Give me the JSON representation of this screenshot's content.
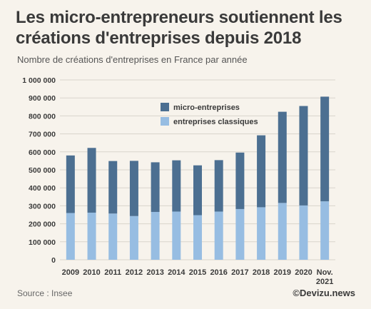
{
  "title": "Les micro-entrepreneurs soutiennent les créations d'entreprises depuis 2018",
  "subtitle": "Nombre de créations d'entreprises en France par année",
  "source": "Source : Insee",
  "brand": "©Devizu.news",
  "colors": {
    "micro": "#4c6f91",
    "classic": "#97bde2",
    "grid": "#d9d4cb",
    "text": "#3a3a3a"
  },
  "chart_data": {
    "type": "bar",
    "stacked": true,
    "categories": [
      "2009",
      "2010",
      "2011",
      "2012",
      "2013",
      "2014",
      "2015",
      "2016",
      "2017",
      "2018",
      "2019",
      "2020",
      "Nov. 2021"
    ],
    "series": [
      {
        "name": "entreprises classiques",
        "values": [
          260000,
          262000,
          257000,
          243000,
          266000,
          268000,
          248000,
          268000,
          282000,
          292000,
          316000,
          302000,
          325000
        ]
      },
      {
        "name": "micro-entreprises",
        "values": [
          320000,
          360000,
          292000,
          307000,
          276000,
          285000,
          277000,
          286000,
          314000,
          400000,
          507000,
          553000,
          582000
        ]
      }
    ],
    "ylim": [
      0,
      1000000
    ],
    "yticks": [
      "0",
      "100 000",
      "200 000",
      "300 000",
      "400 000",
      "500 000",
      "600 000",
      "700 000",
      "800 000",
      "900 000",
      "1 000 000"
    ],
    "legend_position": "top-center",
    "grid": true
  }
}
